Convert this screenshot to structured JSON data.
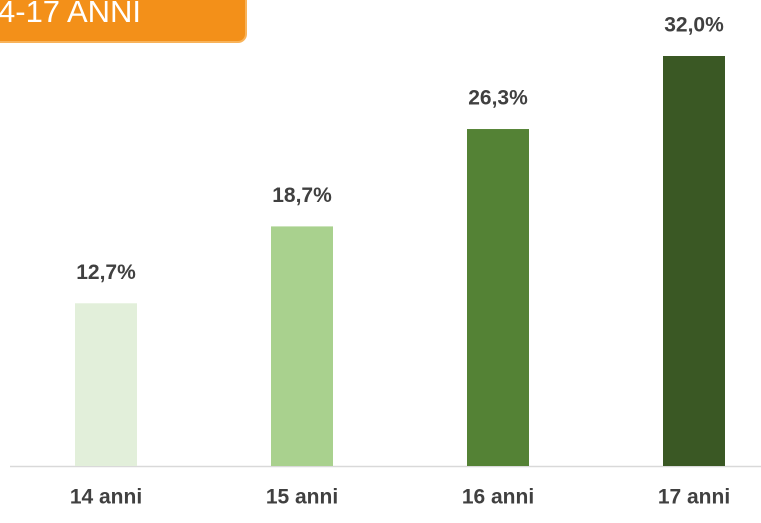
{
  "chart_data": {
    "type": "bar",
    "title": "4-17 ANNI",
    "categories": [
      "14 anni",
      "15 anni",
      "16 anni",
      "17 anni"
    ],
    "values": [
      12.7,
      18.7,
      26.3,
      32.0
    ],
    "value_labels": [
      "12,7%",
      "18,7%",
      "26,3%",
      "32,0%"
    ],
    "colors": [
      "#e2efda",
      "#a9d18e",
      "#548235",
      "#3a5824"
    ],
    "ylim": [
      0,
      32
    ]
  }
}
